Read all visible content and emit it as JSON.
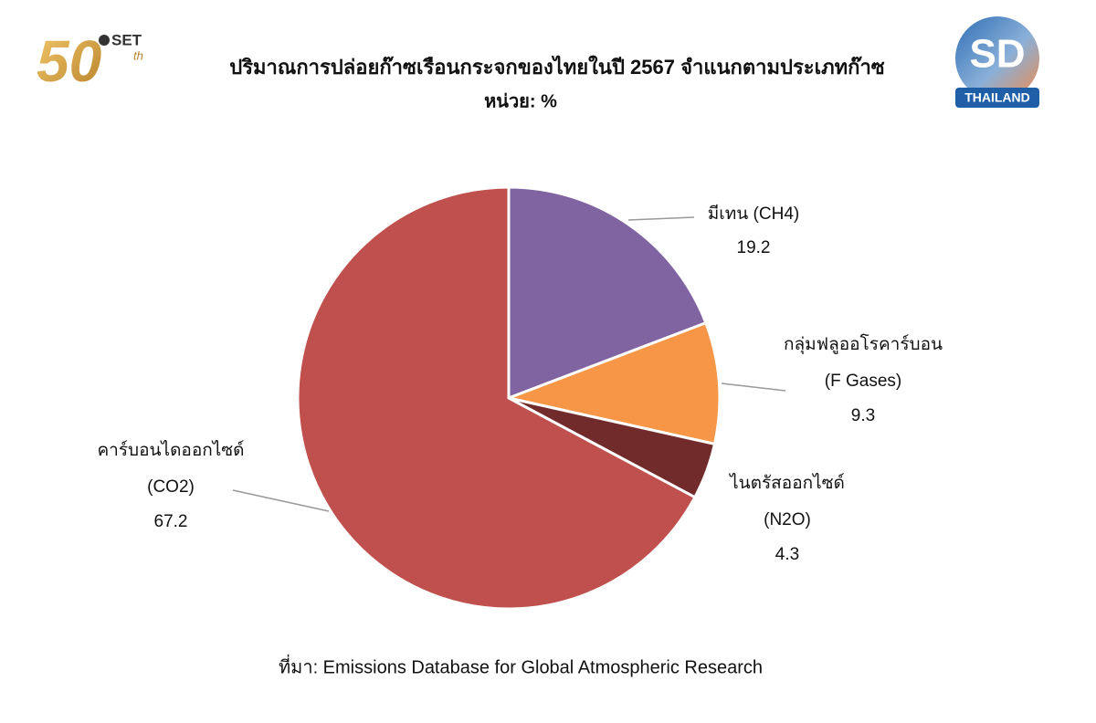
{
  "chart_data": {
    "type": "pie",
    "title": "ปริมาณการปล่อยก๊าซเรือนกระจกของไทยในปี 2567 จำแนกตามประเภทก๊าซ",
    "subtitle": "หน่วย: %",
    "categories": [
      [
        "มีเทน (CH4)"
      ],
      [
        "กลุ่มฟลูออโรคาร์บอน",
        "(F Gases)"
      ],
      [
        "ไนตรัสออกไซด์",
        "(N2O)"
      ],
      [
        "คาร์บอนไดออกไซด์",
        "(CO2)"
      ]
    ],
    "values": [
      19.2,
      9.3,
      4.3,
      67.2
    ],
    "colors": [
      "#8064a2",
      "#f79646",
      "#722b2b",
      "#c0504d"
    ],
    "source": "ที่มา: Emissions Database for Global Atmospheric Research"
  },
  "logos": {
    "set": {
      "number": "50",
      "name": "SET",
      "suffix": "th"
    },
    "sd": {
      "mark": "SD",
      "name": "THAILAND"
    }
  }
}
